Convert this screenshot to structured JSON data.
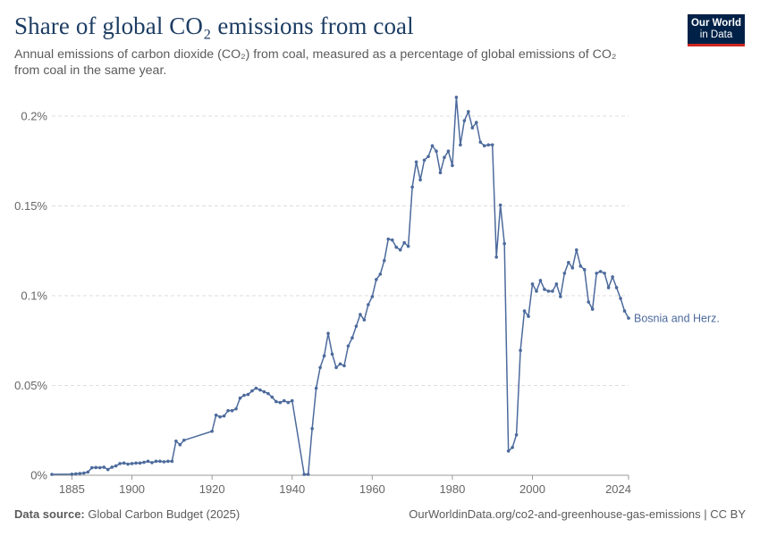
{
  "header": {
    "title": "Share of global CO₂ emissions from coal",
    "subtitle": "Annual emissions of carbon dioxide (CO₂) from coal, measured as a percentage of global emissions of CO₂ from coal in the same year.",
    "logo_line1": "Our World",
    "logo_line2": "in Data"
  },
  "footer": {
    "source_label": "Data source:",
    "source_text": "Global Carbon Budget (2025)",
    "url_text": "OurWorldinData.org/co2-and-greenhouse-gas-emissions | CC BY"
  },
  "colors": {
    "series": "#4c6a9c",
    "grid": "#dddddd",
    "axis": "#999999"
  },
  "chart_data": {
    "type": "line",
    "title": "Share of global CO₂ emissions from coal",
    "xlabel": "",
    "ylabel": "",
    "xlim": [
      1885,
      2024
    ],
    "ylim": [
      0,
      0.2
    ],
    "y_ticks": [
      0,
      0.05,
      0.1,
      0.15,
      0.2
    ],
    "y_tick_labels": [
      "0%",
      "0.05%",
      "0.1%",
      "0.15%",
      "0.2%"
    ],
    "x_ticks": [
      1885,
      1900,
      1920,
      1940,
      1960,
      1980,
      2000,
      2024
    ],
    "x_tick_labels": [
      "1885",
      "1900",
      "1920",
      "1940",
      "1960",
      "1980",
      "2000",
      "2024"
    ],
    "grid": "horizontal-dashed",
    "series": [
      {
        "name": "Bosnia and Herz.",
        "x": [
          1880,
          1885,
          1886,
          1887,
          1888,
          1889,
          1890,
          1891,
          1892,
          1893,
          1894,
          1895,
          1896,
          1897,
          1898,
          1899,
          1900,
          1901,
          1902,
          1903,
          1904,
          1905,
          1906,
          1907,
          1908,
          1909,
          1910,
          1911,
          1912,
          1913,
          1920,
          1921,
          1922,
          1923,
          1924,
          1925,
          1926,
          1927,
          1928,
          1929,
          1930,
          1931,
          1932,
          1933,
          1934,
          1935,
          1936,
          1937,
          1938,
          1939,
          1940,
          1943,
          1944,
          1945,
          1946,
          1947,
          1948,
          1949,
          1950,
          1951,
          1952,
          1953,
          1954,
          1955,
          1956,
          1957,
          1958,
          1959,
          1960,
          1961,
          1962,
          1963,
          1964,
          1965,
          1966,
          1967,
          1968,
          1969,
          1970,
          1971,
          1972,
          1973,
          1974,
          1975,
          1976,
          1977,
          1978,
          1979,
          1980,
          1981,
          1982,
          1983,
          1984,
          1985,
          1986,
          1987,
          1988,
          1989,
          1990,
          1991,
          1992,
          1993,
          1994,
          1995,
          1996,
          1997,
          1998,
          1999,
          2000,
          2001,
          2002,
          2003,
          2004,
          2005,
          2006,
          2007,
          2008,
          2009,
          2010,
          2011,
          2012,
          2013,
          2014,
          2015,
          2016,
          2017,
          2018,
          2019,
          2020,
          2021,
          2022,
          2023,
          2024
        ],
        "values": [
          0.0005,
          0.0006,
          0.0008,
          0.001,
          0.0012,
          0.0018,
          0.0042,
          0.0043,
          0.0042,
          0.0045,
          0.0032,
          0.0045,
          0.0052,
          0.0065,
          0.0068,
          0.0062,
          0.0065,
          0.0068,
          0.0068,
          0.0072,
          0.0078,
          0.007,
          0.0078,
          0.0078,
          0.0075,
          0.0078,
          0.0078,
          0.019,
          0.017,
          0.0195,
          0.0245,
          0.0335,
          0.0325,
          0.033,
          0.036,
          0.036,
          0.037,
          0.043,
          0.0445,
          0.045,
          0.047,
          0.0485,
          0.0475,
          0.0465,
          0.0455,
          0.0435,
          0.041,
          0.0405,
          0.0415,
          0.0405,
          0.0415,
          0.0005,
          0.0005,
          0.026,
          0.0485,
          0.06,
          0.0665,
          0.079,
          0.0675,
          0.06,
          0.062,
          0.061,
          0.072,
          0.0765,
          0.083,
          0.0895,
          0.0865,
          0.095,
          0.0995,
          0.109,
          0.112,
          0.1195,
          0.1315,
          0.131,
          0.127,
          0.1255,
          0.1295,
          0.1275,
          0.1605,
          0.1745,
          0.1645,
          0.1755,
          0.1775,
          0.1835,
          0.1805,
          0.1685,
          0.177,
          0.1805,
          0.1725,
          0.2105,
          0.184,
          0.1975,
          0.2025,
          0.1935,
          0.1965,
          0.1855,
          0.1835,
          0.184,
          0.184,
          0.1215,
          0.1505,
          0.129,
          0.0135,
          0.0155,
          0.0225,
          0.0695,
          0.0915,
          0.0885,
          0.1065,
          0.1025,
          0.1085,
          0.1035,
          0.1025,
          0.1025,
          0.1065,
          0.0995,
          0.1125,
          0.1185,
          0.1155,
          0.1255,
          0.1165,
          0.1145,
          0.0965,
          0.0925,
          0.1125,
          0.1135,
          0.1125,
          0.1045,
          0.1105,
          0.1045,
          0.0985,
          0.0915,
          0.0875
        ]
      }
    ]
  }
}
